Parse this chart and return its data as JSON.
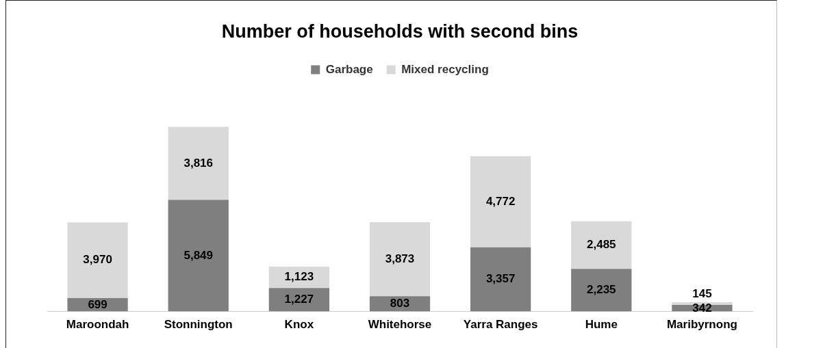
{
  "chart_data": {
    "type": "bar",
    "title": "Number of households with second bins",
    "stacked": true,
    "legend": "top",
    "grid": false,
    "tick_labels": "x",
    "categories": [
      "Maroondah",
      "Stonnington",
      "Knox",
      "Whitehorse",
      "Yarra Ranges",
      "Hume",
      "Maribyrnong"
    ],
    "series": [
      {
        "name": "Garbage",
        "color": "#7f7f7f",
        "values": [
          699,
          5849,
          1227,
          803,
          3357,
          2235,
          342
        ],
        "value_labels": [
          "699",
          "5,849",
          "1,227",
          "803",
          "3,357",
          "2,235",
          "342"
        ]
      },
      {
        "name": "Mixed recycling",
        "color": "#d9d9d9",
        "values": [
          3970,
          3816,
          1123,
          3873,
          4772,
          2485,
          145
        ],
        "value_labels": [
          "3,970",
          "3,816",
          "1,123",
          "3,873",
          "4,772",
          "2,485",
          "145"
        ]
      }
    ]
  }
}
